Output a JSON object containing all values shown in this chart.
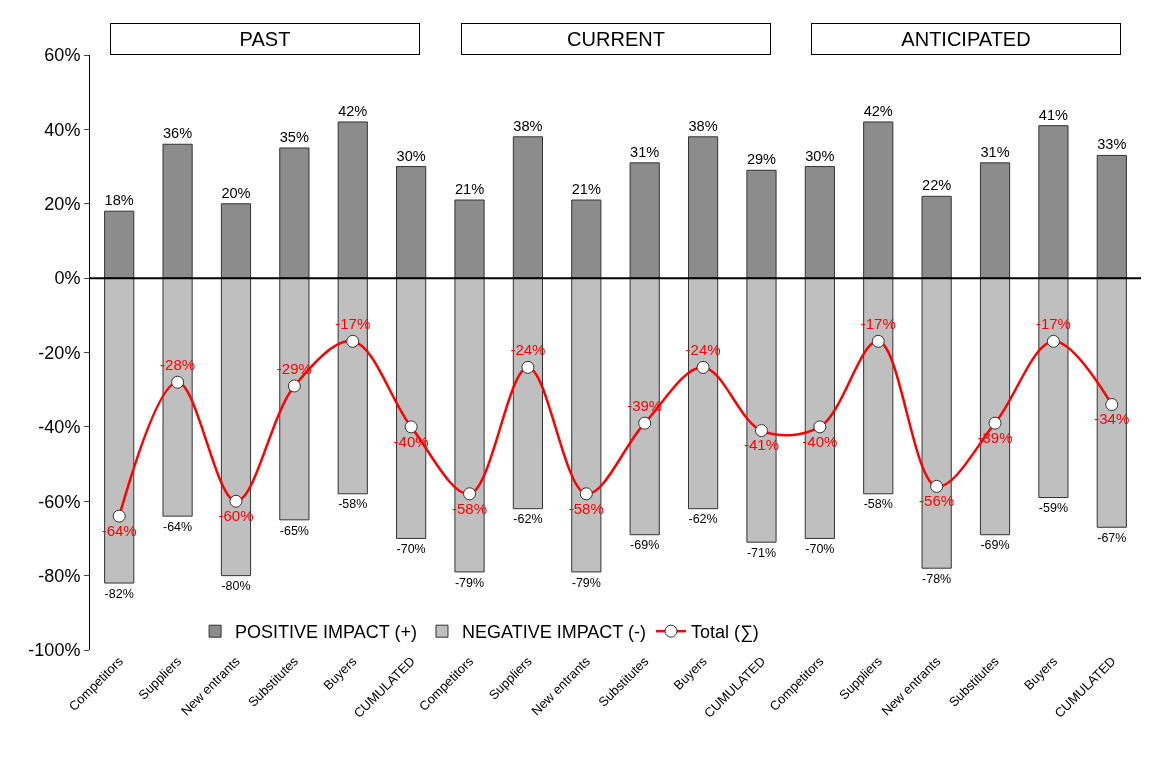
{
  "chart_data": {
    "type": "bar",
    "stacked": true,
    "legend": "bottom",
    "grid": false,
    "marker": "circle",
    "line_style": "solid",
    "categories": [
      "Competitors",
      "Suppliers",
      "New entrants",
      "Substitutes",
      "Buyers",
      "CUMULATED",
      "Competitors",
      "Suppliers",
      "New entrants",
      "Substitutes",
      "Buyers",
      "CUMULATED",
      "Competitors",
      "Suppliers",
      "New entrants",
      "Substitutes",
      "Buyers",
      "CUMULATED"
    ],
    "series": [
      {
        "name": "POSITIVE IMPACT (+)",
        "color": "#8c8c8c",
        "values": [
          18,
          36,
          20,
          35,
          42,
          30,
          21,
          38,
          21,
          31,
          38,
          29,
          30,
          42,
          22,
          31,
          41,
          33
        ],
        "value_labels": [
          "18%",
          "36%",
          "20%",
          "35%",
          "42%",
          "30%",
          "21%",
          "38%",
          "21%",
          "31%",
          "38%",
          "29%",
          "30%",
          "42%",
          "22%",
          "31%",
          "41%",
          "33%"
        ]
      },
      {
        "name": "NEGATIVE IMPACT (-)",
        "color": "#bfbfbf",
        "values": [
          -82,
          -64,
          -80,
          -65,
          -58,
          -70,
          -79,
          -62,
          -79,
          -69,
          -62,
          -71,
          -70,
          -58,
          -78,
          -69,
          -59,
          -67
        ],
        "value_labels": [
          "-82%",
          "-64%",
          "-80%",
          "-65%",
          "-58%",
          "-70%",
          "-79%",
          "-62%",
          "-79%",
          "-69%",
          "-62%",
          "-71%",
          "-70%",
          "-58%",
          "-78%",
          "-69%",
          "-59%",
          "-67%"
        ]
      },
      {
        "name": "Total (∑)",
        "type": "line",
        "color": "#ff0000",
        "values": [
          -64,
          -28,
          -60,
          -29,
          -17,
          -40,
          -58,
          -24,
          -58,
          -39,
          -24,
          -41,
          -40,
          -17,
          -56,
          -39,
          -17,
          -34
        ],
        "value_labels": [
          "-64%",
          "-28%",
          "-60%",
          "-29%",
          "-17%",
          "-40%",
          "-58%",
          "-24%",
          "-58%",
          "-39%",
          "-24%",
          "-41%",
          "-40%",
          "-17%",
          "-56%",
          "-39%",
          "-17%",
          "-34%"
        ]
      }
    ],
    "ref_lines": [
      {
        "axis": "y",
        "value": 0,
        "color": "#000000"
      }
    ],
    "ylim": [
      -100,
      60
    ],
    "yticks": [
      {
        "value": -100,
        "label": "-100%"
      },
      {
        "value": -80,
        "label": "-80%"
      },
      {
        "value": -60,
        "label": "-60%"
      },
      {
        "value": -40,
        "label": "-40%"
      },
      {
        "value": -20,
        "label": "-20%"
      },
      {
        "value": 0,
        "label": "0%"
      },
      {
        "value": 20,
        "label": "20%"
      },
      {
        "value": 40,
        "label": "40%"
      },
      {
        "value": 60,
        "label": "60%"
      }
    ],
    "annotations": [
      "PAST",
      "CURRENT",
      "ANTICIPATED"
    ]
  }
}
